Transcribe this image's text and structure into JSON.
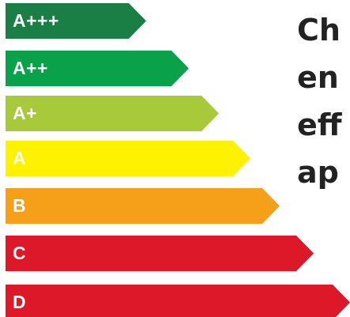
{
  "rating_scale": {
    "classes": [
      {
        "label": "A+++",
        "color": "#1a7f45"
      },
      {
        "label": "A++",
        "color": "#0aa14b"
      },
      {
        "label": "A+",
        "color": "#a7c93a"
      },
      {
        "label": "A",
        "color": "#fff200"
      },
      {
        "label": "B",
        "color": "#f6a01a"
      },
      {
        "label": "C",
        "color": "#dc1829"
      },
      {
        "label": "D",
        "color": "#dc1829"
      }
    ]
  },
  "heading": {
    "lines": [
      "Ch",
      "en",
      "eff",
      "ap"
    ]
  }
}
